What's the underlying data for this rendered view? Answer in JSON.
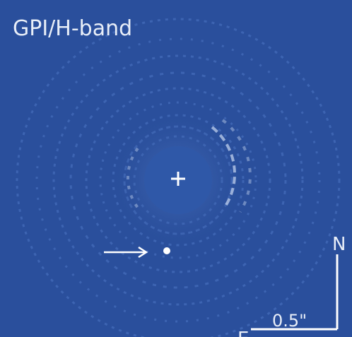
{
  "label": "GPI/H-band",
  "compass": {
    "north": "N",
    "east": "E"
  },
  "scale_bar": {
    "label": "0.5\""
  }
}
